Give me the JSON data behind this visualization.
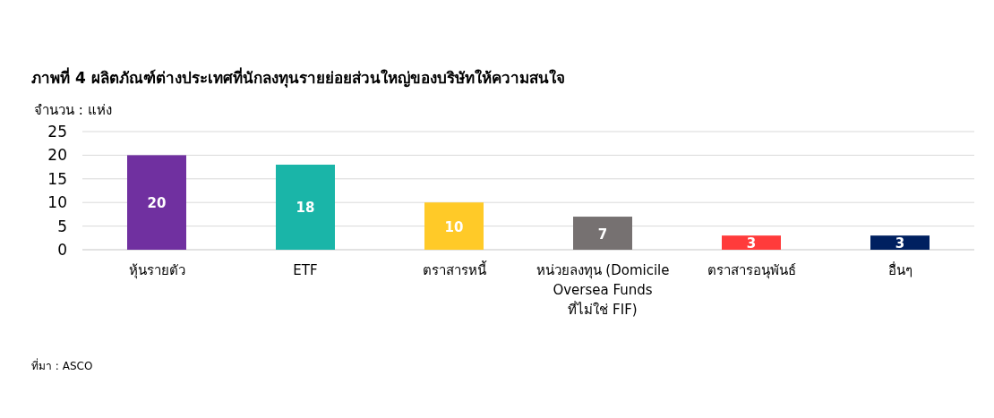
{
  "chart_data": {
    "type": "bar",
    "title": "ภาพที่ 4 ผลิตภัณฑ์ต่างประเทศที่นักลงทุนรายย่อยส่วนใหญ่ของบริษัทให้ความสนใจ",
    "ylabel": "จำนวน : แห่ง",
    "categories": [
      "หุ้นรายตัว",
      "ETF",
      "ตราสารหนี้",
      "หน่วยลงทุน (Domicile Oversea Funds ที่ไม่ใช่ FIF)",
      "ตราสารอนุพันธ์",
      "อื่นๆ"
    ],
    "values": [
      20,
      18,
      10,
      7,
      3,
      3
    ],
    "colors": [
      "#7030a0",
      "#1ab5a8",
      "#ffca28",
      "#767171",
      "#ff3b3b",
      "#002060"
    ],
    "ylim": [
      0,
      25
    ],
    "yticks": [
      0,
      5,
      10,
      15,
      20,
      25
    ],
    "grid": "y",
    "data_labels": true,
    "annotations": [
      "ที่มา : ASCO"
    ]
  }
}
